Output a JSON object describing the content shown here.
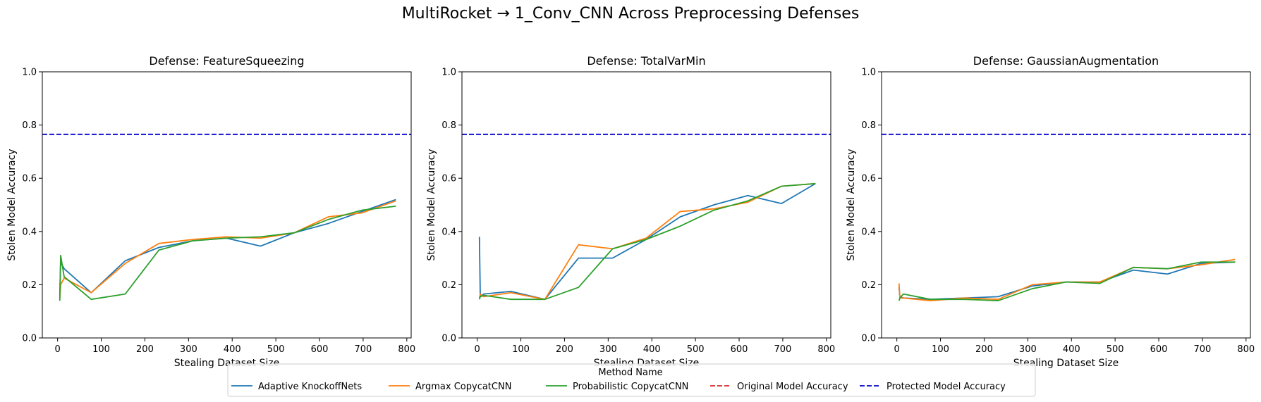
{
  "title": "MultiRocket → 1_Conv_CNN Across Preprocessing Defenses",
  "colors": {
    "Adaptive KnockoffNets": "#1f77b4",
    "Argmax CopycatCNN": "#ff7f0e",
    "Probabilistic CopycatCNN": "#2ca02c",
    "Original Model Accuracy": "#d62728",
    "Protected Model Accuracy": "#0000cc"
  },
  "legend": {
    "title": "Method Name",
    "placement": "lower-center",
    "entries": [
      {
        "label": "Adaptive KnockoffNets",
        "style": "solid"
      },
      {
        "label": "Argmax CopycatCNN",
        "style": "solid"
      },
      {
        "label": "Probabilistic CopycatCNN",
        "style": "solid"
      },
      {
        "label": "Original Model Accuracy",
        "style": "dashed"
      },
      {
        "label": "Protected Model Accuracy",
        "style": "dashed"
      }
    ]
  },
  "chart_data": [
    {
      "type": "line",
      "title": "Defense: FeatureSqueezing",
      "xlabel": "Stealing Dataset Size",
      "ylabel": "Stolen Model Accuracy",
      "xlim": [
        -35,
        810
      ],
      "ylim": [
        0,
        1
      ],
      "xticks": [
        0,
        100,
        200,
        300,
        400,
        500,
        600,
        700,
        800
      ],
      "yticks": [
        0.0,
        0.2,
        0.4,
        0.6,
        0.8,
        1.0
      ],
      "hline": {
        "name": "Protected Model Accuracy",
        "y": 0.765
      },
      "series": [
        {
          "name": "Adaptive KnockoffNets",
          "x": [
            5,
            7,
            15,
            77,
            155,
            232,
            310,
            387,
            465,
            542,
            620,
            697,
            775
          ],
          "y": [
            0.16,
            0.285,
            0.26,
            0.17,
            0.29,
            0.34,
            0.365,
            0.375,
            0.345,
            0.395,
            0.43,
            0.475,
            0.52
          ]
        },
        {
          "name": "Argmax CopycatCNN",
          "x": [
            5,
            7,
            15,
            77,
            155,
            232,
            310,
            387,
            465,
            542,
            620,
            697,
            775
          ],
          "y": [
            0.15,
            0.2,
            0.225,
            0.17,
            0.28,
            0.355,
            0.37,
            0.38,
            0.375,
            0.395,
            0.455,
            0.47,
            0.515
          ]
        },
        {
          "name": "Probabilistic CopycatCNN",
          "x": [
            5,
            7,
            15,
            77,
            155,
            232,
            310,
            387,
            465,
            542,
            620,
            697,
            775
          ],
          "y": [
            0.14,
            0.31,
            0.23,
            0.145,
            0.165,
            0.33,
            0.365,
            0.375,
            0.38,
            0.395,
            0.445,
            0.48,
            0.495
          ]
        }
      ]
    },
    {
      "type": "line",
      "title": "Defense: TotalVarMin",
      "xlabel": "Stealing Dataset Size",
      "ylabel": "Stolen Model Accuracy",
      "xlim": [
        -35,
        810
      ],
      "ylim": [
        0,
        1
      ],
      "xticks": [
        0,
        100,
        200,
        300,
        400,
        500,
        600,
        700,
        800
      ],
      "yticks": [
        0.0,
        0.2,
        0.4,
        0.6,
        0.8,
        1.0
      ],
      "hline": {
        "name": "Protected Model Accuracy",
        "y": 0.765
      },
      "series": [
        {
          "name": "Adaptive KnockoffNets",
          "x": [
            5,
            7,
            15,
            77,
            155,
            232,
            310,
            387,
            465,
            542,
            620,
            697,
            775
          ],
          "y": [
            0.38,
            0.155,
            0.165,
            0.175,
            0.145,
            0.3,
            0.3,
            0.37,
            0.455,
            0.5,
            0.535,
            0.505,
            0.58
          ]
        },
        {
          "name": "Argmax CopycatCNN",
          "x": [
            5,
            7,
            15,
            77,
            155,
            232,
            310,
            387,
            465,
            542,
            620,
            697,
            775
          ],
          "y": [
            0.15,
            0.165,
            0.155,
            0.17,
            0.145,
            0.35,
            0.335,
            0.375,
            0.475,
            0.485,
            0.51,
            0.57,
            0.58
          ]
        },
        {
          "name": "Probabilistic CopycatCNN",
          "x": [
            5,
            7,
            15,
            77,
            155,
            232,
            310,
            387,
            465,
            542,
            620,
            697,
            775
          ],
          "y": [
            0.145,
            0.155,
            0.16,
            0.145,
            0.145,
            0.19,
            0.335,
            0.37,
            0.42,
            0.48,
            0.515,
            0.57,
            0.58
          ]
        }
      ]
    },
    {
      "type": "line",
      "title": "Defense: GaussianAugmentation",
      "xlabel": "Stealing Dataset Size",
      "ylabel": "Stolen Model Accuracy",
      "xlim": [
        -35,
        810
      ],
      "ylim": [
        0,
        1
      ],
      "xticks": [
        0,
        100,
        200,
        300,
        400,
        500,
        600,
        700,
        800
      ],
      "yticks": [
        0.0,
        0.2,
        0.4,
        0.6,
        0.8,
        1.0
      ],
      "hline": {
        "name": "Protected Model Accuracy",
        "y": 0.765
      },
      "series": [
        {
          "name": "Adaptive KnockoffNets",
          "x": [
            5,
            7,
            15,
            77,
            155,
            232,
            310,
            387,
            465,
            542,
            620,
            697,
            775
          ],
          "y": [
            0.19,
            0.155,
            0.15,
            0.145,
            0.15,
            0.155,
            0.195,
            0.21,
            0.21,
            0.255,
            0.24,
            0.28,
            0.285
          ]
        },
        {
          "name": "Argmax CopycatCNN",
          "x": [
            5,
            7,
            15,
            77,
            155,
            232,
            310,
            387,
            465,
            542,
            620,
            697,
            775
          ],
          "y": [
            0.205,
            0.15,
            0.15,
            0.14,
            0.15,
            0.145,
            0.2,
            0.21,
            0.21,
            0.265,
            0.26,
            0.275,
            0.295
          ]
        },
        {
          "name": "Probabilistic CopycatCNN",
          "x": [
            5,
            7,
            15,
            77,
            155,
            232,
            310,
            387,
            465,
            542,
            620,
            697,
            775
          ],
          "y": [
            0.14,
            0.15,
            0.165,
            0.145,
            0.145,
            0.14,
            0.185,
            0.21,
            0.205,
            0.265,
            0.26,
            0.285,
            0.285
          ]
        }
      ]
    }
  ]
}
